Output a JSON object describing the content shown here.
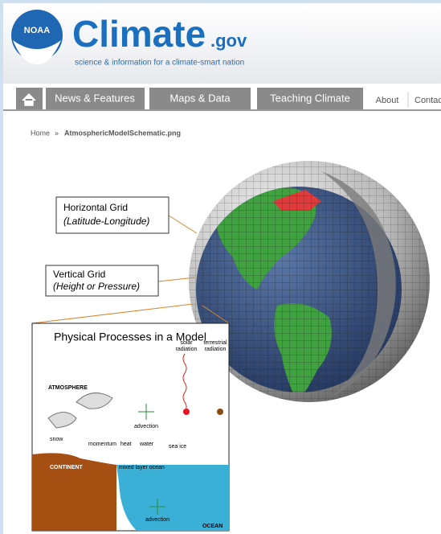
{
  "header": {
    "logo": "NOAA",
    "site_name": "Climate",
    "site_suffix": ".gov",
    "tagline": "science & information for a climate-smart nation"
  },
  "nav": {
    "items": [
      "News & Features",
      "Maps & Data",
      "Teaching Climate",
      "About",
      "Contac"
    ]
  },
  "breadcrumb": {
    "home": "Home",
    "separator": "»",
    "current": "AtmosphericModelSchematic.png"
  },
  "figure": {
    "callouts": [
      {
        "title": "Horizontal Grid",
        "subtitle": "(Latitude-Longitude)"
      },
      {
        "title": "Vertical Grid",
        "subtitle": "(Height or Pressure)"
      }
    ],
    "inset": {
      "title": "Physical Processes in a Model",
      "solar": [
        "solar",
        "radiation"
      ],
      "terrestrial": [
        "terrestrial",
        "radiation"
      ],
      "atmosphere": "ATMOSPHERE",
      "advection_air": "advection",
      "snow": "snow",
      "momentum": "momentum",
      "heat": "heat",
      "water": "water",
      "sea_ice": "sea ice",
      "continent": "CONTINENT",
      "mixed_layer": "mixed layer ocean",
      "advection_ocean": "advection",
      "ocean": "OCEAN"
    }
  }
}
